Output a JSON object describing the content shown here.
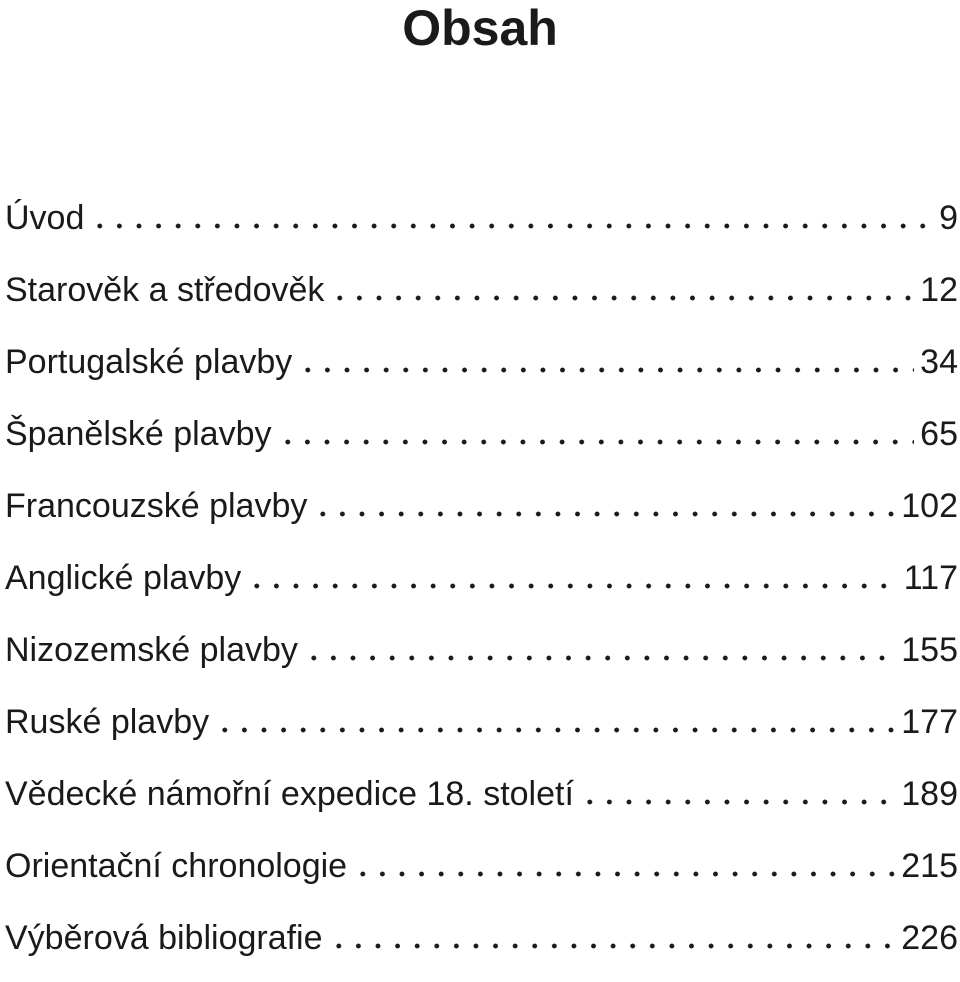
{
  "header": {
    "title": "Obsah"
  },
  "entries": [
    {
      "label": "Úvod",
      "page": "9"
    },
    {
      "label": "Starověk a středověk",
      "page": "12"
    },
    {
      "label": "Portugalské plavby",
      "page": "34"
    },
    {
      "label": "Španělské plavby",
      "page": "65"
    },
    {
      "label": "Francouzské plavby",
      "page": "102"
    },
    {
      "label": "Anglické plavby",
      "page": "117"
    },
    {
      "label": "Nizozemské plavby",
      "page": "155"
    },
    {
      "label": "Ruské plavby",
      "page": "177"
    },
    {
      "label": "Vědecké námořní expedice 18. století",
      "page": "189"
    },
    {
      "label": "Orientační chronologie",
      "page": "215"
    },
    {
      "label": "Výběrová bibliografie",
      "page": "226"
    }
  ]
}
